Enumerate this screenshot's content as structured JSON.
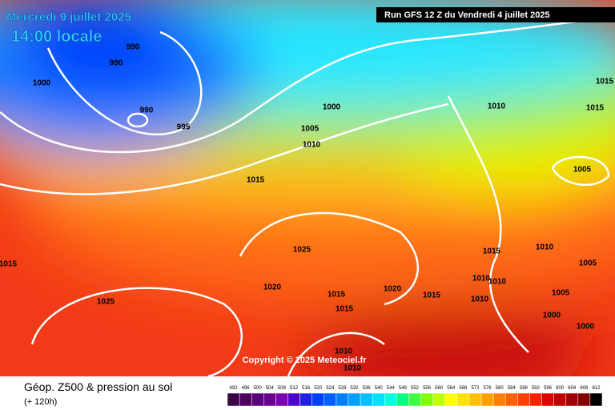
{
  "header": {
    "date": "Mercredi 9 juillet 2025",
    "time": "14:00 locale",
    "run": "Run GFS 12 Z du Vendredi 4 juillet 2025"
  },
  "copyright": "Copyright © 2025 Meteociel.fr",
  "footer": {
    "title": "Géop. Z500 & pression au sol",
    "lead": "(+ 120h)"
  },
  "isobar_labels": [
    "990",
    "990",
    "1000",
    "990",
    "995",
    "1000",
    "1005",
    "1010",
    "1015",
    "1025",
    "1020",
    "1025",
    "1015",
    "1015",
    "1015",
    "1020",
    "1015",
    "1010",
    "1010",
    "1010",
    "1015",
    "1015",
    "1005",
    "1015",
    "1010",
    "1010",
    "1010",
    "1005",
    "1005",
    "1010",
    "1000",
    "1000"
  ],
  "legend": [
    {
      "value": 492,
      "color": "#3a0048"
    },
    {
      "value": 496,
      "color": "#4b0060"
    },
    {
      "value": 500,
      "color": "#5a007a"
    },
    {
      "value": 504,
      "color": "#6a0090"
    },
    {
      "value": 508,
      "color": "#7a00b0"
    },
    {
      "value": 512,
      "color": "#5000c8"
    },
    {
      "value": 516,
      "color": "#2020e0"
    },
    {
      "value": 520,
      "color": "#0040ff"
    },
    {
      "value": 524,
      "color": "#0060ff"
    },
    {
      "value": 528,
      "color": "#0080ff"
    },
    {
      "value": 532,
      "color": "#00a0ff"
    },
    {
      "value": 536,
      "color": "#00c0ff"
    },
    {
      "value": 540,
      "color": "#00e0ff"
    },
    {
      "value": 544,
      "color": "#00ffe0"
    },
    {
      "value": 548,
      "color": "#00ff80"
    },
    {
      "value": 552,
      "color": "#40ff40"
    },
    {
      "value": 556,
      "color": "#80ff00"
    },
    {
      "value": 560,
      "color": "#c0ff00"
    },
    {
      "value": 564,
      "color": "#ffff00"
    },
    {
      "value": 568,
      "color": "#ffe000"
    },
    {
      "value": 572,
      "color": "#ffc000"
    },
    {
      "value": 576,
      "color": "#ffa000"
    },
    {
      "value": 580,
      "color": "#ff8000"
    },
    {
      "value": 584,
      "color": "#ff6000"
    },
    {
      "value": 588,
      "color": "#ff4000"
    },
    {
      "value": 592,
      "color": "#ff2000"
    },
    {
      "value": 596,
      "color": "#e00000"
    },
    {
      "value": 600,
      "color": "#c00000"
    },
    {
      "value": 604,
      "color": "#a00000"
    },
    {
      "value": 608,
      "color": "#800000"
    },
    {
      "value": 612,
      "color": "#000000"
    }
  ]
}
